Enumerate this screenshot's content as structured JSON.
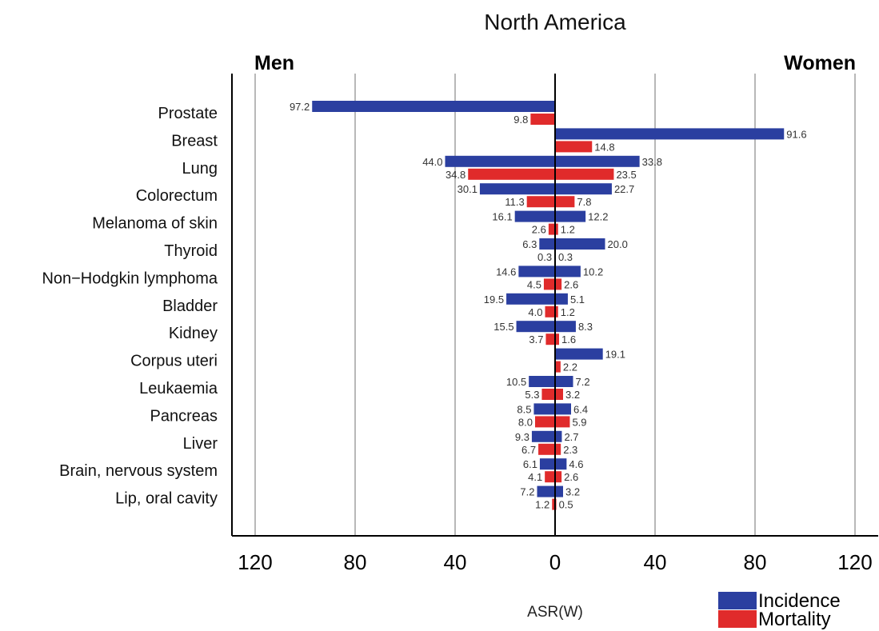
{
  "chart_data": {
    "type": "bar",
    "title": "North America",
    "left_label": "Men",
    "right_label": "Women",
    "xlabel": "ASR(W)",
    "x_ticks": [
      "120",
      "80",
      "40",
      "0",
      "40",
      "80",
      "120"
    ],
    "xlim": [
      -120,
      120
    ],
    "grid": true,
    "legend_position": "bottom-right",
    "categories": [
      "Prostate",
      "Breast",
      "Lung",
      "Colorectum",
      "Melanoma of skin",
      "Thyroid",
      "Non−Hodgkin lymphoma",
      "Bladder",
      "Kidney",
      "Corpus uteri",
      "Leukaemia",
      "Pancreas",
      "Liver",
      "Brain, nervous system",
      "Lip, oral cavity"
    ],
    "series": [
      {
        "name": "Incidence",
        "sex": "Men",
        "color": "#2b3fa0",
        "values": [
          97.2,
          null,
          44.0,
          30.1,
          16.1,
          6.3,
          14.6,
          19.5,
          15.5,
          null,
          10.5,
          8.5,
          9.3,
          6.1,
          7.2
        ],
        "labels": [
          "97.2",
          null,
          "44.0",
          "30.1",
          "16.1",
          "6.3",
          "14.6",
          "19.5",
          "15.5",
          null,
          "10.5",
          "8.5",
          "9.3",
          "6.1",
          "7.2"
        ]
      },
      {
        "name": "Mortality",
        "sex": "Men",
        "color": "#e02b2b",
        "values": [
          9.8,
          null,
          34.8,
          11.3,
          2.6,
          0.3,
          4.5,
          4.0,
          3.7,
          null,
          5.3,
          8.0,
          6.7,
          4.1,
          1.2
        ],
        "labels": [
          "9.8",
          null,
          "34.8",
          "11.3",
          "2.6",
          "0.3",
          "4.5",
          "4.0",
          "3.7",
          null,
          "5.3",
          "8.0",
          "6.7",
          "4.1",
          "1.2"
        ]
      },
      {
        "name": "Incidence",
        "sex": "Women",
        "color": "#2b3fa0",
        "values": [
          null,
          91.6,
          33.8,
          22.7,
          12.2,
          20.0,
          10.2,
          5.1,
          8.3,
          19.1,
          7.2,
          6.4,
          2.7,
          4.6,
          3.2
        ],
        "labels": [
          null,
          "91.6",
          "33.8",
          "22.7",
          "12.2",
          "20.0",
          "10.2",
          "5.1",
          "8.3",
          "19.1",
          "7.2",
          "6.4",
          "2.7",
          "4.6",
          "3.2"
        ]
      },
      {
        "name": "Mortality",
        "sex": "Women",
        "color": "#e02b2b",
        "values": [
          null,
          14.8,
          23.5,
          7.8,
          1.2,
          0.3,
          2.6,
          1.2,
          1.6,
          2.2,
          3.2,
          5.9,
          2.3,
          2.6,
          0.5
        ],
        "labels": [
          null,
          "14.8",
          "23.5",
          "7.8",
          "1.2",
          "0.3",
          "2.6",
          "1.2",
          "1.6",
          "2.2",
          "3.2",
          "5.9",
          "2.3",
          "2.6",
          "0.5"
        ]
      }
    ],
    "legend": [
      {
        "label": "Incidence",
        "color": "#2b3fa0"
      },
      {
        "label": "Mortality",
        "color": "#e02b2b"
      }
    ]
  }
}
